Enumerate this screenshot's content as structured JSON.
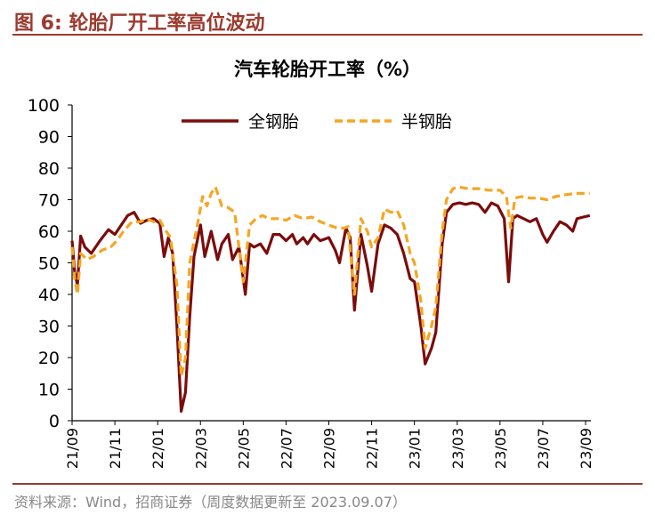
{
  "figure": {
    "label": "图 6:",
    "caption": "轮胎厂开工率高位波动",
    "accent_color": "#9b3b2f"
  },
  "source_note": "资料来源：Wind，招商证券（周度数据更新至 2023.09.07）",
  "chart_data": {
    "type": "line",
    "title": "汽车轮胎开工率（%）",
    "xlabel": "",
    "ylabel": "",
    "ylim": [
      0,
      100
    ],
    "yticks": [
      0,
      10,
      20,
      30,
      40,
      50,
      60,
      70,
      80,
      90,
      100
    ],
    "xlim": [
      0,
      24
    ],
    "xticks": [
      {
        "x": 0,
        "label": "21/09"
      },
      {
        "x": 2,
        "label": "21/11"
      },
      {
        "x": 4,
        "label": "22/01"
      },
      {
        "x": 6,
        "label": "22/03"
      },
      {
        "x": 8,
        "label": "22/05"
      },
      {
        "x": 10,
        "label": "22/07"
      },
      {
        "x": 12,
        "label": "22/09"
      },
      {
        "x": 14,
        "label": "22/11"
      },
      {
        "x": 16,
        "label": "23/01"
      },
      {
        "x": 18,
        "label": "23/03"
      },
      {
        "x": 20,
        "label": "23/05"
      },
      {
        "x": 22,
        "label": "23/07"
      },
      {
        "x": 24,
        "label": "23/09"
      }
    ],
    "grid": false,
    "legend_position": "top",
    "series": [
      {
        "name": "全钢胎",
        "color": "#7b0c0c",
        "style": "solid",
        "points": [
          [
            0,
            57
          ],
          [
            0.12,
            47
          ],
          [
            0.25,
            43
          ],
          [
            0.4,
            58.5
          ],
          [
            0.6,
            55
          ],
          [
            0.9,
            53
          ],
          [
            1.3,
            57
          ],
          [
            1.7,
            60.5
          ],
          [
            2,
            59
          ],
          [
            2.3,
            62
          ],
          [
            2.6,
            65
          ],
          [
            2.9,
            66
          ],
          [
            3.2,
            62.5
          ],
          [
            3.5,
            63.5
          ],
          [
            3.8,
            64
          ],
          [
            4.1,
            62.5
          ],
          [
            4.3,
            52
          ],
          [
            4.5,
            58
          ],
          [
            4.7,
            53
          ],
          [
            4.9,
            30
          ],
          [
            5.1,
            3
          ],
          [
            5.3,
            9
          ],
          [
            5.5,
            33
          ],
          [
            5.7,
            52
          ],
          [
            6.0,
            62
          ],
          [
            6.2,
            52
          ],
          [
            6.5,
            60
          ],
          [
            6.8,
            51
          ],
          [
            7.0,
            56
          ],
          [
            7.3,
            59
          ],
          [
            7.5,
            51
          ],
          [
            7.8,
            55
          ],
          [
            8.1,
            40
          ],
          [
            8.3,
            56
          ],
          [
            8.5,
            55
          ],
          [
            8.8,
            56
          ],
          [
            9.1,
            53
          ],
          [
            9.4,
            59
          ],
          [
            9.7,
            59
          ],
          [
            10.0,
            57
          ],
          [
            10.3,
            59
          ],
          [
            10.5,
            56
          ],
          [
            10.8,
            58
          ],
          [
            11.0,
            56
          ],
          [
            11.3,
            59
          ],
          [
            11.6,
            57
          ],
          [
            12.0,
            58
          ],
          [
            12.3,
            54
          ],
          [
            12.5,
            50
          ],
          [
            12.8,
            61
          ],
          [
            13.0,
            58
          ],
          [
            13.2,
            35
          ],
          [
            13.5,
            59
          ],
          [
            13.8,
            49
          ],
          [
            14.0,
            41
          ],
          [
            14.3,
            56
          ],
          [
            14.6,
            62
          ],
          [
            14.9,
            61
          ],
          [
            15.2,
            59
          ],
          [
            15.5,
            53
          ],
          [
            15.8,
            45
          ],
          [
            16.0,
            44
          ],
          [
            16.3,
            30
          ],
          [
            16.5,
            18
          ],
          [
            16.8,
            23
          ],
          [
            17.0,
            28
          ],
          [
            17.3,
            56
          ],
          [
            17.5,
            66
          ],
          [
            17.8,
            68.5
          ],
          [
            18.1,
            69
          ],
          [
            18.4,
            68.5
          ],
          [
            18.7,
            69
          ],
          [
            19.0,
            68.5
          ],
          [
            19.3,
            66
          ],
          [
            19.6,
            69
          ],
          [
            19.9,
            68
          ],
          [
            20.2,
            64
          ],
          [
            20.4,
            44
          ],
          [
            20.6,
            64
          ],
          [
            20.8,
            65
          ],
          [
            21.1,
            64
          ],
          [
            21.4,
            63
          ],
          [
            21.7,
            64
          ],
          [
            22.0,
            59
          ],
          [
            22.2,
            56.5
          ],
          [
            22.5,
            60
          ],
          [
            22.8,
            63
          ],
          [
            23.1,
            62
          ],
          [
            23.4,
            60
          ],
          [
            23.6,
            64
          ],
          [
            23.9,
            64.5
          ],
          [
            24.2,
            65
          ]
        ]
      },
      {
        "name": "半钢胎",
        "color": "#f5a623",
        "style": "dashed",
        "points": [
          [
            0,
            55
          ],
          [
            0.12,
            45
          ],
          [
            0.25,
            40
          ],
          [
            0.4,
            53
          ],
          [
            0.7,
            51
          ],
          [
            1.0,
            52
          ],
          [
            1.4,
            54
          ],
          [
            1.8,
            55
          ],
          [
            2.1,
            57
          ],
          [
            2.4,
            60
          ],
          [
            2.8,
            63
          ],
          [
            3.2,
            63
          ],
          [
            3.5,
            64
          ],
          [
            3.8,
            63
          ],
          [
            4.1,
            63.5
          ],
          [
            4.3,
            61
          ],
          [
            4.6,
            58
          ],
          [
            4.9,
            43
          ],
          [
            5.1,
            14
          ],
          [
            5.3,
            20
          ],
          [
            5.5,
            50
          ],
          [
            5.8,
            60
          ],
          [
            6.1,
            71
          ],
          [
            6.3,
            68
          ],
          [
            6.5,
            72
          ],
          [
            6.7,
            74
          ],
          [
            7.0,
            68
          ],
          [
            7.3,
            67.5
          ],
          [
            7.6,
            66
          ],
          [
            8.0,
            44
          ],
          [
            8.3,
            62
          ],
          [
            8.6,
            64
          ],
          [
            8.9,
            65
          ],
          [
            9.2,
            64
          ],
          [
            9.6,
            64
          ],
          [
            10.0,
            63.5
          ],
          [
            10.4,
            65
          ],
          [
            10.8,
            64
          ],
          [
            11.2,
            64.5
          ],
          [
            11.6,
            63
          ],
          [
            12.0,
            62
          ],
          [
            12.4,
            61
          ],
          [
            12.7,
            61
          ],
          [
            12.9,
            61.5
          ],
          [
            13.2,
            40
          ],
          [
            13.5,
            64
          ],
          [
            13.8,
            60
          ],
          [
            14.0,
            55
          ],
          [
            14.3,
            58
          ],
          [
            14.6,
            67
          ],
          [
            14.9,
            66
          ],
          [
            15.2,
            66.5
          ],
          [
            15.5,
            62
          ],
          [
            15.8,
            53
          ],
          [
            16.0,
            50
          ],
          [
            16.3,
            38
          ],
          [
            16.5,
            23
          ],
          [
            16.8,
            30
          ],
          [
            17.0,
            36
          ],
          [
            17.3,
            60
          ],
          [
            17.5,
            70
          ],
          [
            17.8,
            73.5
          ],
          [
            18.1,
            74
          ],
          [
            18.5,
            73.5
          ],
          [
            19.0,
            73.5
          ],
          [
            19.5,
            73
          ],
          [
            20.0,
            73
          ],
          [
            20.3,
            71
          ],
          [
            20.5,
            61
          ],
          [
            20.7,
            70.5
          ],
          [
            21.0,
            71
          ],
          [
            21.4,
            70.5
          ],
          [
            21.8,
            70.5
          ],
          [
            22.2,
            70
          ],
          [
            22.6,
            71
          ],
          [
            23.0,
            71.5
          ],
          [
            23.5,
            72
          ],
          [
            24.0,
            72
          ],
          [
            24.2,
            72
          ]
        ]
      }
    ]
  }
}
